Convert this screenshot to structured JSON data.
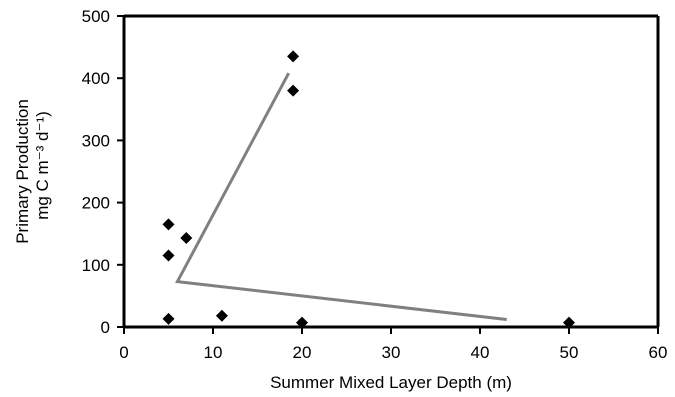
{
  "chart_data": {
    "type": "scatter",
    "title": "",
    "xlabel": "Summer Mixed Layer Depth (m)",
    "ylabel_lines": [
      "Primary Production",
      "mg C m⁻³ d⁻¹)"
    ],
    "xlim": [
      0,
      60
    ],
    "ylim": [
      0,
      500
    ],
    "xticks": [
      0,
      10,
      20,
      30,
      40,
      50,
      60
    ],
    "yticks": [
      0,
      100,
      200,
      300,
      400,
      500
    ],
    "grid": false,
    "legend": "none",
    "points": [
      {
        "x": 5,
        "y": 165
      },
      {
        "x": 5,
        "y": 115
      },
      {
        "x": 5,
        "y": 13
      },
      {
        "x": 7,
        "y": 143
      },
      {
        "x": 11,
        "y": 18
      },
      {
        "x": 19,
        "y": 435
      },
      {
        "x": 19,
        "y": 380
      },
      {
        "x": 20,
        "y": 7
      },
      {
        "x": 50,
        "y": 7
      }
    ],
    "trend_line": [
      {
        "x": 18.5,
        "y": 408
      },
      {
        "x": 6,
        "y": 73
      },
      {
        "x": 43,
        "y": 12
      }
    ],
    "colors": {
      "marker": "#000000",
      "line": "#808080",
      "axis": "#000000"
    }
  }
}
